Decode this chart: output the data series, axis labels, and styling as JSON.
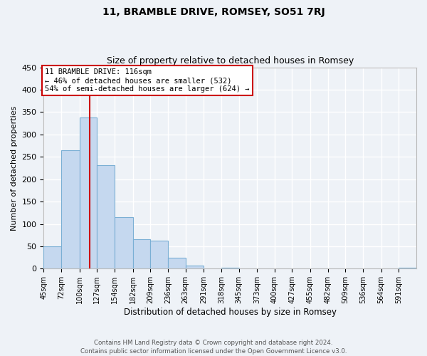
{
  "title": "11, BRAMBLE DRIVE, ROMSEY, SO51 7RJ",
  "subtitle": "Size of property relative to detached houses in Romsey",
  "xlabel": "Distribution of detached houses by size in Romsey",
  "ylabel": "Number of detached properties",
  "bar_color": "#c5d8ef",
  "bar_edge_color": "#7aafd4",
  "background_color": "#eef2f7",
  "grid_color": "#ffffff",
  "bin_labels": [
    "45sqm",
    "72sqm",
    "100sqm",
    "127sqm",
    "154sqm",
    "182sqm",
    "209sqm",
    "236sqm",
    "263sqm",
    "291sqm",
    "318sqm",
    "345sqm",
    "373sqm",
    "400sqm",
    "427sqm",
    "455sqm",
    "482sqm",
    "509sqm",
    "536sqm",
    "564sqm",
    "591sqm"
  ],
  "bar_values": [
    50,
    265,
    338,
    232,
    115,
    66,
    63,
    25,
    7,
    0,
    2,
    0,
    1,
    0,
    0,
    0,
    0,
    0,
    0,
    0,
    2
  ],
  "vline_x": 116,
  "vline_color": "#cc0000",
  "annotation_title": "11 BRAMBLE DRIVE: 116sqm",
  "annotation_line1": "← 46% of detached houses are smaller (532)",
  "annotation_line2": "54% of semi-detached houses are larger (624) →",
  "annotation_box_color": "#cc0000",
  "ylim": [
    0,
    450
  ],
  "footer1": "Contains HM Land Registry data © Crown copyright and database right 2024.",
  "footer2": "Contains public sector information licensed under the Open Government Licence v3.0.",
  "bin_edges": [
    45,
    72,
    100,
    127,
    154,
    182,
    209,
    236,
    263,
    291,
    318,
    345,
    373,
    400,
    427,
    455,
    482,
    509,
    536,
    564,
    591,
    618
  ]
}
